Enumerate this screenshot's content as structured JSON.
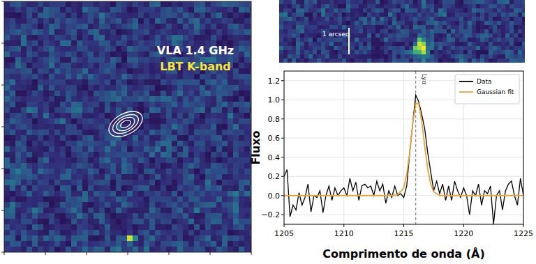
{
  "chart_data": [
    {
      "type": "image",
      "labels": [
        "VLA 1.4 GHz",
        "LBT K-band"
      ],
      "tick_labels": false
    },
    {
      "type": "image",
      "annotation": "1 arcsec",
      "tick_labels": false
    },
    {
      "type": "line",
      "x_label": "Comprimento de onda (Å)",
      "y_label": "Fluxo",
      "annotations": [
        {
          "text": "Lyα",
          "x": 1216
        }
      ],
      "xlim": [
        1205,
        1225
      ],
      "xticks": [
        1205,
        1210,
        1215,
        1220,
        1225
      ],
      "ylim": [
        -0.3,
        1.3
      ],
      "yticks": [
        {
          "value": -0.2,
          "label": "−0.2"
        },
        {
          "value": 0,
          "label": "0.0"
        },
        0.2,
        0.4,
        0.6,
        0.8,
        {
          "value": 1,
          "label": "1.0"
        },
        1.2
      ],
      "grid": true,
      "legend": "upper-right",
      "series": [
        {
          "name": "Data",
          "color": "#000000",
          "line_style": "solid",
          "x": [
            1205,
            1205.25,
            1205.5,
            1205.75,
            1206,
            1206.25,
            1206.5,
            1206.75,
            1207,
            1207.25,
            1207.5,
            1207.75,
            1208,
            1208.25,
            1208.5,
            1208.75,
            1209,
            1209.25,
            1209.5,
            1209.75,
            1210,
            1210.25,
            1210.5,
            1210.75,
            1211,
            1211.25,
            1211.5,
            1211.75,
            1212,
            1212.25,
            1212.5,
            1212.75,
            1213,
            1213.25,
            1213.5,
            1213.75,
            1214,
            1214.25,
            1214.5,
            1214.75,
            1215,
            1215.25,
            1215.5,
            1215.75,
            1216,
            1216.25,
            1216.5,
            1216.75,
            1217,
            1217.25,
            1217.5,
            1217.75,
            1218,
            1218.25,
            1218.5,
            1218.75,
            1219,
            1219.25,
            1219.5,
            1219.75,
            1220,
            1220.25,
            1220.5,
            1220.75,
            1221,
            1221.25,
            1221.5,
            1221.75,
            1222,
            1222.25,
            1222.5,
            1222.75,
            1223,
            1223.25,
            1223.5,
            1223.75,
            1224,
            1224.25,
            1224.5,
            1224.75,
            1225
          ],
          "values": [
            0.2,
            0.27,
            -0.22,
            -0.1,
            -0.15,
            0.03,
            -0.1,
            -0.02,
            0.12,
            -0.17,
            0.0,
            -0.02,
            0.05,
            -0.18,
            0.0,
            0.1,
            -0.05,
            0.08,
            0.0,
            0.05,
            0.08,
            0.0,
            0.18,
            0.05,
            0.14,
            -0.05,
            0.1,
            0.12,
            0.08,
            0.1,
            0.0,
            0.15,
            0.05,
            0.12,
            -0.08,
            0.05,
            -0.02,
            0.1,
            0.0,
            0.02,
            -0.02,
            0.1,
            0.45,
            0.75,
            1.05,
            0.98,
            0.85,
            0.7,
            0.45,
            0.25,
            0.05,
            0.15,
            0.02,
            0.12,
            -0.05,
            0.1,
            -0.05,
            0.15,
            0.05,
            -0.02,
            0.08,
            0.0,
            -0.2,
            0.05,
            0.0,
            0.12,
            -0.1,
            0.05,
            0.02,
            0.1,
            -0.3,
            0.0,
            0.05,
            -0.15,
            0.05,
            0.12,
            0.15,
            0.0,
            -0.1,
            0.18,
            0.0
          ]
        },
        {
          "name": "Gaussian fit",
          "color": "#e8a33d",
          "line_style": "solid",
          "x": [
            1205,
            1214,
            1214.5,
            1215,
            1215.25,
            1215.5,
            1215.75,
            1216,
            1216.25,
            1216.5,
            1216.75,
            1217,
            1217.25,
            1217.5,
            1218,
            1219,
            1225
          ],
          "values": [
            0.0,
            0.0,
            0.01,
            0.08,
            0.22,
            0.45,
            0.75,
            0.96,
            0.96,
            0.78,
            0.52,
            0.28,
            0.12,
            0.04,
            0.0,
            0.0,
            0.0
          ]
        }
      ]
    }
  ]
}
